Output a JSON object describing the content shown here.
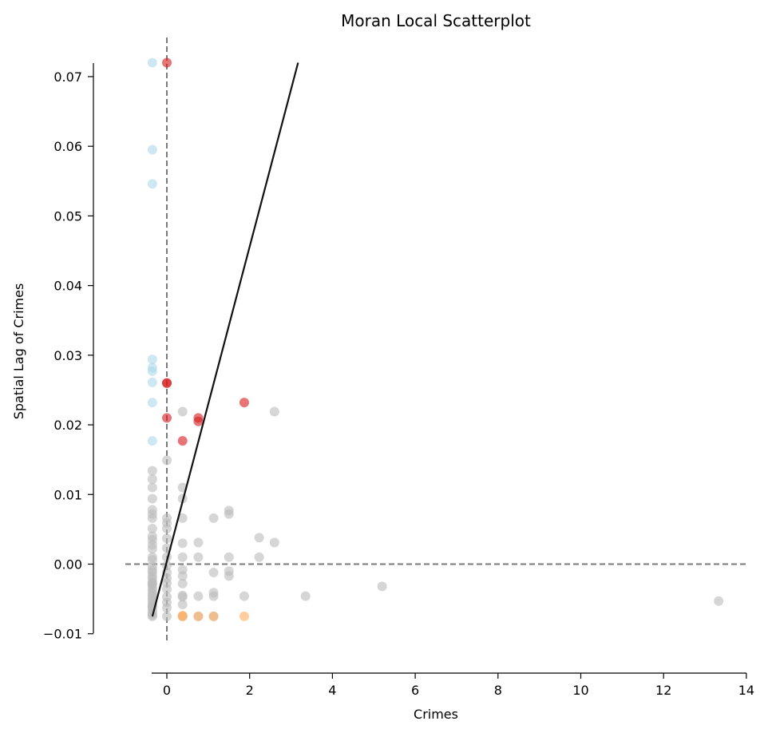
{
  "chart_data": {
    "type": "scatter",
    "title": "Moran Local Scatterplot",
    "xlabel": "Crimes",
    "ylabel": "Spatial Lag of Crimes",
    "xlim": [
      -1,
      14
    ],
    "ylim": [
      -0.01,
      0.072
    ],
    "x_ticks": [
      0,
      2,
      4,
      6,
      8,
      10,
      12,
      14
    ],
    "x_tick_labels": [
      "0",
      "2",
      "4",
      "6",
      "8",
      "10",
      "12",
      "14"
    ],
    "y_ticks": [
      -0.01,
      0.0,
      0.01,
      0.02,
      0.03,
      0.04,
      0.05,
      0.06,
      0.07
    ],
    "y_tick_labels": [
      "−0.01",
      "0.00",
      "0.01",
      "0.02",
      "0.03",
      "0.04",
      "0.05",
      "0.06",
      "0.07"
    ],
    "grid": false,
    "reference_lines": {
      "x": 0,
      "y": 0,
      "style": "dashed",
      "color": "#7a7a7a"
    },
    "fit_line": {
      "x": [
        -0.35,
        3.17
      ],
      "y": [
        -0.0075,
        0.072
      ],
      "color": "#111111"
    },
    "colors": {
      "HH": "#d7191c",
      "LH": "#abd9e9",
      "LL": "#2c7bb6",
      "HL": "#fdae61",
      "ns": "#bababa"
    },
    "series": [
      {
        "key": "HH",
        "color": "#d7191c",
        "x": [
          0.0,
          0.0,
          0.0,
          0.0,
          0.38,
          0.76,
          0.76,
          1.87
        ],
        "y": [
          0.072,
          0.026,
          0.026,
          0.021,
          0.0177,
          0.021,
          0.0205,
          0.0232
        ]
      },
      {
        "key": "LH",
        "color": "#abd9e9",
        "x": [
          -0.35,
          -0.35,
          -0.35,
          -0.35,
          -0.35,
          -0.35,
          -0.35,
          -0.35,
          -0.35
        ],
        "y": [
          0.072,
          0.0595,
          0.0546,
          0.0294,
          0.0282,
          0.0277,
          0.0261,
          0.0232,
          0.0177
        ]
      },
      {
        "key": "HL",
        "color": "#fdae61",
        "x": [
          0.38,
          0.38,
          0.76,
          1.13,
          1.87
        ],
        "y": [
          -0.0074,
          -0.0075,
          -0.0075,
          -0.0075,
          -0.0075
        ]
      },
      {
        "key": "ns",
        "color": "#bababa",
        "x": [
          -0.35,
          -0.35,
          -0.35,
          -0.35,
          -0.35,
          -0.35,
          -0.35,
          -0.35,
          -0.35,
          -0.35,
          -0.35,
          -0.35,
          -0.35,
          -0.35,
          -0.35,
          -0.35,
          -0.35,
          -0.35,
          -0.35,
          -0.35,
          -0.35,
          -0.35,
          -0.35,
          -0.35,
          -0.35,
          -0.35,
          -0.35,
          -0.35,
          -0.35,
          -0.35,
          -0.35,
          -0.35,
          -0.35,
          -0.35,
          -0.35,
          0.0,
          0.0,
          0.0,
          0.0,
          0.0,
          0.0,
          0.0,
          0.0,
          0.0,
          0.0,
          0.0,
          0.0,
          0.0,
          0.0,
          0.0,
          0.0,
          0.38,
          0.38,
          0.38,
          0.38,
          0.38,
          0.38,
          0.38,
          0.38,
          0.38,
          0.38,
          0.38,
          0.38,
          0.38,
          0.76,
          0.76,
          0.76,
          0.76,
          1.13,
          1.13,
          1.13,
          1.13,
          1.13,
          1.5,
          1.5,
          1.5,
          1.5,
          1.5,
          1.87,
          2.23,
          2.23,
          2.6,
          2.6,
          3.35,
          5.2,
          13.33
        ],
        "y": [
          0.0134,
          0.0122,
          0.011,
          0.0094,
          0.0078,
          0.0072,
          0.0066,
          0.0051,
          0.004,
          0.0035,
          0.0028,
          0.0022,
          0.001,
          0.0006,
          -0.0003,
          -0.0008,
          -0.0012,
          -0.0017,
          -0.0021,
          -0.0026,
          -0.003,
          -0.0034,
          -0.0038,
          -0.0042,
          -0.0046,
          -0.005,
          -0.0054,
          -0.0058,
          -0.0062,
          -0.0066,
          -0.007,
          -0.0073,
          -0.0075,
          -0.0061,
          -0.0028,
          0.0149,
          0.0066,
          0.0059,
          0.0051,
          0.0037,
          0.0023,
          0.001,
          -0.0002,
          -0.0012,
          -0.002,
          -0.0027,
          -0.0036,
          -0.0047,
          -0.0055,
          -0.0063,
          -0.0075,
          0.0219,
          0.011,
          0.0094,
          0.0066,
          0.003,
          0.001,
          -0.0008,
          -0.0017,
          -0.0028,
          -0.0045,
          -0.0047,
          -0.0058,
          -0.0075,
          0.0031,
          0.001,
          -0.0046,
          -0.0075,
          0.0066,
          -0.0012,
          -0.0041,
          -0.0046,
          -0.0075,
          0.0077,
          0.0072,
          0.001,
          -0.001,
          -0.0017,
          -0.0046,
          0.0038,
          0.001,
          0.0219,
          0.0031,
          -0.0046,
          -0.0032,
          -0.0053
        ]
      }
    ]
  }
}
